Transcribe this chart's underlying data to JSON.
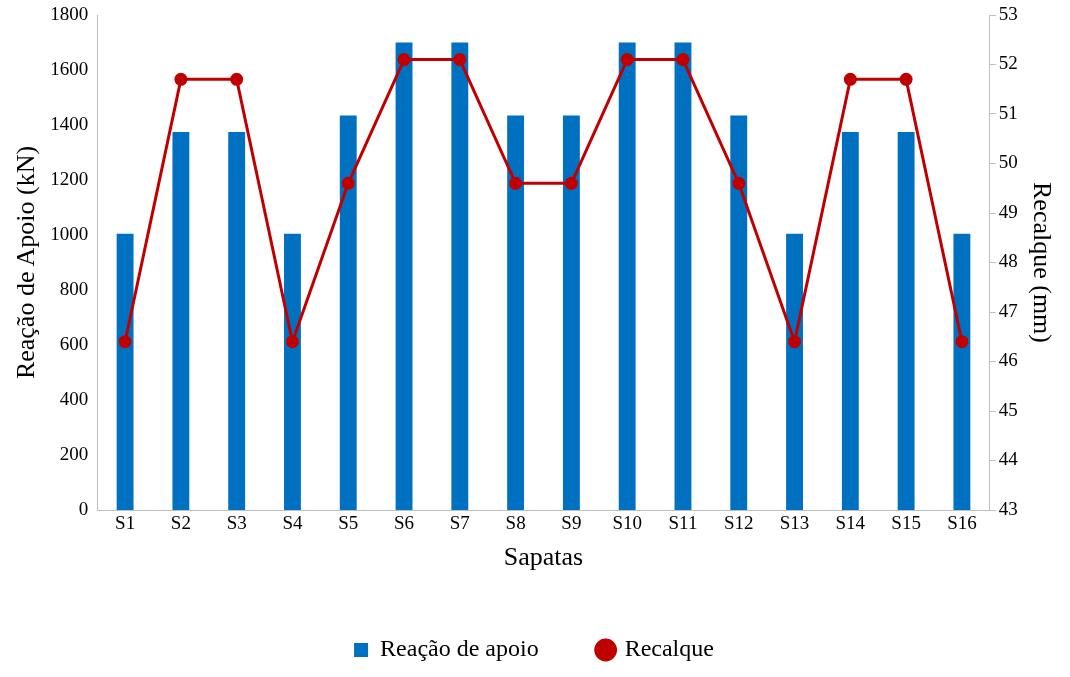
{
  "chart_data": {
    "type": "bar",
    "xlabel": "Sapatas",
    "ylabel": "Reação de Apoio (kN)",
    "y2label": "Recalque (mm)",
    "categories": [
      "S1",
      "S2",
      "S3",
      "S4",
      "S5",
      "S6",
      "S7",
      "S8",
      "S9",
      "S10",
      "S11",
      "S12",
      "S13",
      "S14",
      "S15",
      "S16"
    ],
    "series": [
      {
        "name": "Reação de apoio",
        "color": "#0070c0",
        "values": [
          1005,
          1375,
          1375,
          1005,
          1435,
          1700,
          1700,
          1435,
          1435,
          1700,
          1700,
          1435,
          1005,
          1375,
          1375,
          1005
        ]
      },
      {
        "name": "Recalque",
        "type": "line",
        "axis": "y2",
        "color": "#c00000",
        "marker": "circle",
        "values": [
          46.4,
          51.7,
          51.7,
          46.4,
          49.6,
          52.1,
          52.1,
          49.6,
          49.6,
          52.1,
          52.1,
          49.6,
          46.4,
          51.7,
          51.7,
          46.4
        ]
      }
    ],
    "ylim": [
      0,
      1800
    ],
    "yticks": [
      0,
      200,
      400,
      600,
      800,
      1000,
      1200,
      1400,
      1600,
      1800
    ],
    "y2lim": [
      43,
      53
    ],
    "y2ticks": [
      43,
      44,
      45,
      46,
      47,
      48,
      49,
      50,
      51,
      52,
      53
    ],
    "grid": false,
    "legend": "bottom"
  }
}
